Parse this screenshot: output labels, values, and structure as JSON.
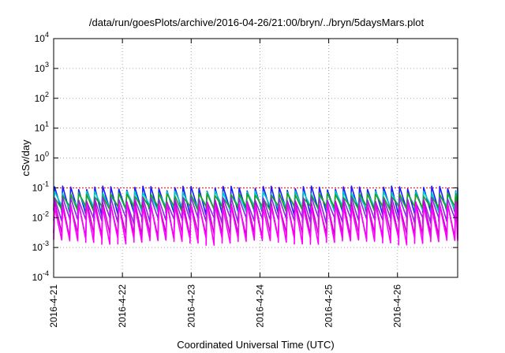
{
  "chart_data": {
    "type": "line",
    "title": "/data/run/goesPlots/archive/2016-04-26/21:00/bryn/../bryn/5daysMars.plot",
    "xlabel": "Coordinated Universal Time (UTC)",
    "ylabel": "cSv/day",
    "yscale": "log",
    "ylim": [
      0.0001,
      10000
    ],
    "y_ticks": [
      {
        "value": 0.0001,
        "base": "10",
        "exp": "-4"
      },
      {
        "value": 0.001,
        "base": "10",
        "exp": "-3"
      },
      {
        "value": 0.01,
        "base": "10",
        "exp": "-2"
      },
      {
        "value": 0.1,
        "base": "10",
        "exp": "-1"
      },
      {
        "value": 1,
        "base": "10",
        "exp": "0"
      },
      {
        "value": 10,
        "base": "10",
        "exp": "1"
      },
      {
        "value": 100,
        "base": "10",
        "exp": "2"
      },
      {
        "value": 1000,
        "base": "10",
        "exp": "3"
      },
      {
        "value": 10000,
        "base": "10",
        "exp": "4"
      }
    ],
    "xlim": [
      "2016-04-21 00:00",
      "2016-04-26 21:00"
    ],
    "x_ticks": [
      "2016-4-21",
      "2016-4-22",
      "2016-4-23",
      "2016-4-24",
      "2016-4-25",
      "2016-4-26"
    ],
    "grid": true,
    "legend": "none",
    "pulse_period_hours": 2.8,
    "series": [
      {
        "color": "#ff0000",
        "peak": 0.1,
        "trough": 0.1
      },
      {
        "color": "#1a1aff",
        "peak": 0.095,
        "trough": 0.015
      },
      {
        "color": "#00c8c8",
        "peak": 0.065,
        "trough": 0.02
      },
      {
        "color": "#20a020",
        "peak": 0.055,
        "trough": 0.02
      },
      {
        "color": "#8a2be2",
        "peak": 0.04,
        "trough": 0.008
      },
      {
        "color": "#cc00cc",
        "peak": 0.03,
        "trough": 0.0025
      },
      {
        "color": "#ff00ff",
        "peak": 0.025,
        "trough": 0.0016
      }
    ]
  }
}
